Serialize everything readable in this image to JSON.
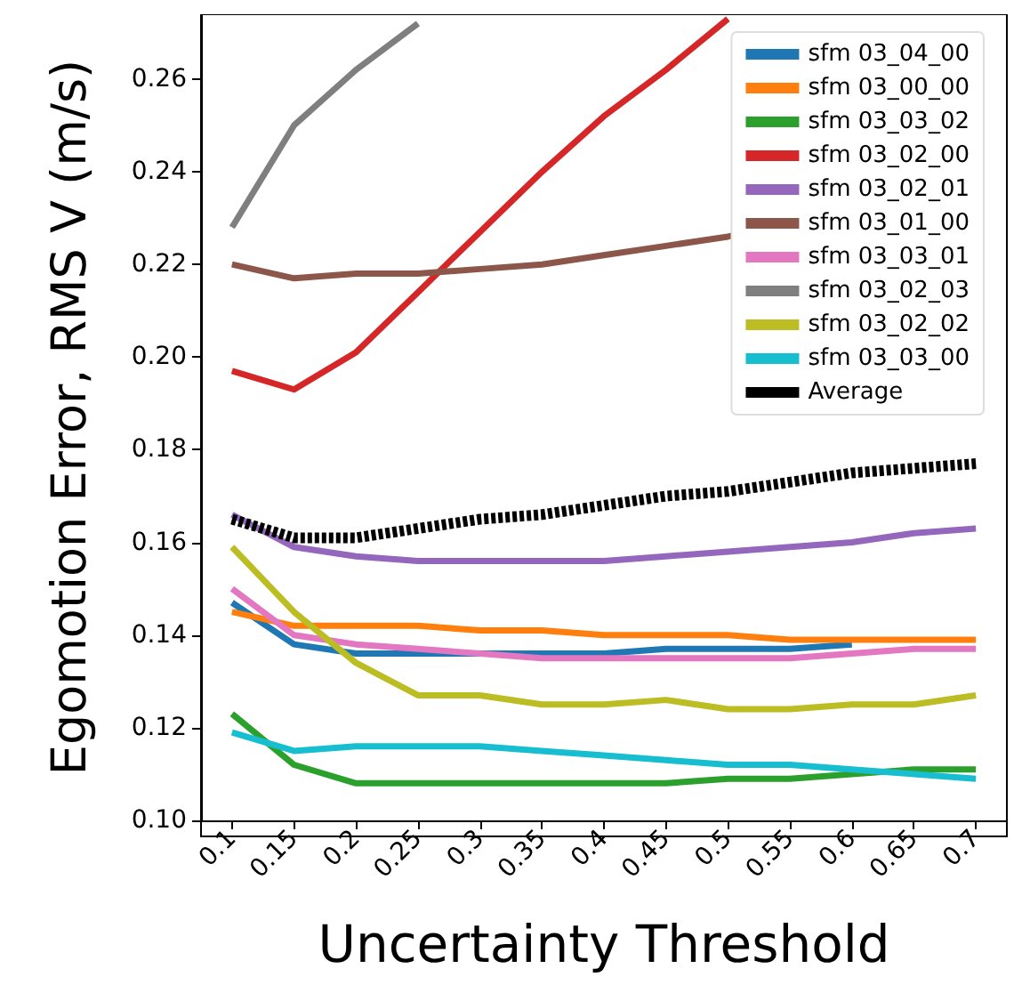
{
  "chart_data": {
    "type": "line",
    "xlabel": "Uncertainty Threshold",
    "ylabel": "Egomotion Error, RMS V (m/s)",
    "categories": [
      "0.1",
      "0.15",
      "0.2",
      "0.25",
      "0.3",
      "0.35",
      "0.4",
      "0.45",
      "0.5",
      "0.55",
      "0.6",
      "0.65",
      "0.7"
    ],
    "ylim": [
      0.1,
      0.274
    ],
    "yticks": [
      {
        "value": 0.1,
        "label": "0.10"
      },
      {
        "value": 0.12,
        "label": "0.12"
      },
      {
        "value": 0.14,
        "label": "0.14"
      },
      {
        "value": 0.16,
        "label": "0.16"
      },
      {
        "value": 0.18,
        "label": "0.18"
      },
      {
        "value": 0.2,
        "label": "0.20"
      },
      {
        "value": 0.22,
        "label": "0.22"
      },
      {
        "value": 0.24,
        "label": "0.24"
      },
      {
        "value": 0.26,
        "label": "0.26"
      }
    ],
    "grid": false,
    "legend": "top right",
    "marker": "none",
    "series": [
      {
        "name": "sfm 03_04_00",
        "color": "#1f77b4",
        "values": [
          0.147,
          0.138,
          0.136,
          0.136,
          0.136,
          0.136,
          0.136,
          0.137,
          0.137,
          0.137,
          0.138,
          null,
          null
        ]
      },
      {
        "name": "sfm 03_00_00",
        "color": "#ff7f0e",
        "values": [
          0.145,
          0.142,
          0.142,
          0.142,
          0.141,
          0.141,
          0.14,
          0.14,
          0.14,
          0.139,
          0.139,
          0.139,
          0.139
        ]
      },
      {
        "name": "sfm 03_03_02",
        "color": "#2ca02c",
        "values": [
          0.123,
          0.112,
          0.108,
          0.108,
          0.108,
          0.108,
          0.108,
          0.108,
          0.109,
          0.109,
          0.11,
          0.111,
          0.111
        ]
      },
      {
        "name": "sfm 03_02_00",
        "color": "#d62728",
        "values": [
          0.197,
          0.193,
          0.201,
          0.214,
          0.227,
          0.24,
          0.252,
          0.262,
          0.273,
          null,
          null,
          null,
          null
        ]
      },
      {
        "name": "sfm 03_02_01",
        "color": "#9467bd",
        "values": [
          0.166,
          0.159,
          0.157,
          0.156,
          0.156,
          0.156,
          0.156,
          0.157,
          0.158,
          0.159,
          0.16,
          0.162,
          0.163
        ]
      },
      {
        "name": "sfm 03_01_00",
        "color": "#8c564b",
        "values": [
          0.22,
          0.217,
          0.218,
          0.218,
          0.219,
          0.22,
          0.222,
          0.224,
          0.226,
          0.229,
          null,
          null,
          null
        ]
      },
      {
        "name": "sfm 03_03_01",
        "color": "#e377c2",
        "values": [
          0.15,
          0.14,
          0.138,
          0.137,
          0.136,
          0.135,
          0.135,
          0.135,
          0.135,
          0.135,
          0.136,
          0.137,
          0.137
        ]
      },
      {
        "name": "sfm 03_02_03",
        "color": "#7f7f7f",
        "values": [
          0.228,
          0.25,
          0.262,
          0.272,
          null,
          null,
          null,
          null,
          null,
          null,
          null,
          null,
          null
        ]
      },
      {
        "name": "sfm 03_02_02",
        "color": "#bcbd22",
        "values": [
          0.159,
          0.145,
          0.134,
          0.127,
          0.127,
          0.125,
          0.125,
          0.126,
          0.124,
          0.124,
          0.125,
          0.125,
          0.127
        ]
      },
      {
        "name": "sfm 03_03_00",
        "color": "#17becf",
        "values": [
          0.119,
          0.115,
          0.116,
          0.116,
          0.116,
          0.115,
          0.114,
          0.113,
          0.112,
          0.112,
          0.111,
          0.11,
          0.109
        ]
      },
      {
        "name": "Average",
        "color": "#000000",
        "line_style": "dashed",
        "values": [
          0.165,
          0.161,
          0.161,
          0.163,
          0.165,
          0.166,
          0.168,
          0.17,
          0.171,
          0.173,
          0.175,
          0.176,
          0.177
        ]
      }
    ]
  }
}
